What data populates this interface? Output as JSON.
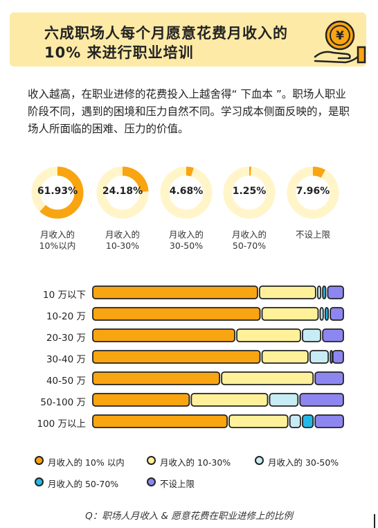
{
  "header": {
    "title_line1": "六成职场人每个月愿意花费月收入的",
    "title_line2": "10% 来进行职业培训",
    "icon": "yen-coin-on-hand-icon"
  },
  "intro": "收入越高，在职业进修的花费投入上越舍得“ 下血本 ”。职场人职业阶段不同，遇到的困境和压力自然不同。学习成本侧面反映的，是职场人所面临的困难、压力的价值。",
  "caption": "Q：职场人月收入 & 愿意花费在职业进修上的比例",
  "colors": {
    "c0": "#f9a411",
    "c1": "#fff19a",
    "c2": "#c8ecf4",
    "c3": "#25b8e6",
    "c4": "#8e86f0",
    "ring_bg": "#fff5c9",
    "header_bg": "#fdeaa6"
  },
  "chart_data": [
    {
      "type": "pie",
      "variant": "donut",
      "categories": [
        "月收入的 10%以内",
        "月收入的 10-30%",
        "月收入的 30-50%",
        "月收入的 50-70%",
        "不设上限"
      ],
      "label_lines": [
        [
          "月收入的",
          "10%以内"
        ],
        [
          "月收入的",
          "10-30%"
        ],
        [
          "月收入的",
          "30-50%"
        ],
        [
          "月收入的",
          "50-70%"
        ],
        [
          "不设上限"
        ]
      ],
      "values": [
        61.93,
        24.18,
        4.68,
        1.25,
        7.96
      ],
      "value_labels": [
        "61.93%",
        "24.18%",
        "4.68%",
        "1.25%",
        "7.96%"
      ]
    },
    {
      "type": "bar",
      "orientation": "horizontal",
      "stacked": true,
      "normalized": true,
      "categories": [
        "10 万以下",
        "10-20 万",
        "20-30 万",
        "30-40 万",
        "40-50 万",
        "50-100 万",
        "100 万以上"
      ],
      "series": [
        {
          "name": "月收入的 10% 以内",
          "values": [
            66,
            67,
            57,
            67,
            51,
            39,
            54
          ]
        },
        {
          "name": "月收入的 10-30%",
          "values": [
            23,
            23,
            26,
            19,
            37,
            31,
            24
          ]
        },
        {
          "name": "月收入的 30-50%",
          "values": [
            2,
            2,
            8,
            8,
            0,
            12,
            5
          ]
        },
        {
          "name": "月收入的 50-70%",
          "values": [
            2,
            2,
            0,
            1,
            0,
            0,
            5
          ]
        },
        {
          "name": "不设上限",
          "values": [
            7,
            6,
            9,
            5,
            12,
            18,
            12
          ]
        }
      ],
      "legend_position": "bottom"
    }
  ]
}
